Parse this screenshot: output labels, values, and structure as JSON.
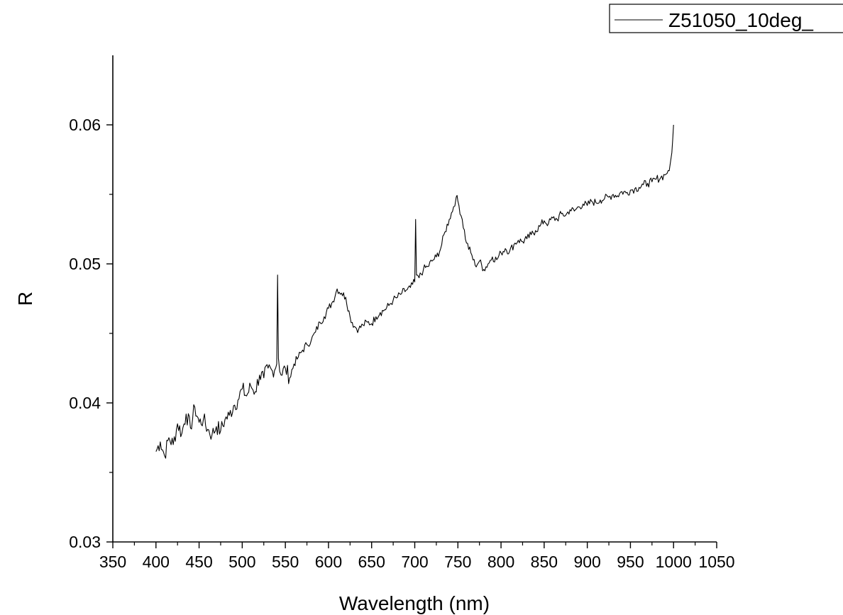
{
  "chart_data": {
    "type": "line",
    "title": "",
    "xlabel": "Wavelength (nm)",
    "ylabel": "R",
    "xlim": [
      350,
      1050
    ],
    "ylim": [
      0.03,
      0.065
    ],
    "x_ticks": [
      350,
      400,
      450,
      500,
      550,
      600,
      650,
      700,
      750,
      800,
      850,
      900,
      950,
      1000,
      1050
    ],
    "x_tick_labels": [
      "350",
      "400",
      "450",
      "500",
      "550",
      "600",
      "650",
      "700",
      "750",
      "800",
      "850",
      "900",
      "950",
      "1000",
      "1050"
    ],
    "y_ticks": [
      0.03,
      0.04,
      0.05,
      0.06
    ],
    "y_tick_labels": [
      "0.03",
      "0.04",
      "0.05",
      "0.06"
    ],
    "grid": false,
    "legend_position": "top-right",
    "series": [
      {
        "name": "Z51050_10deg_",
        "color": "#000000",
        "x": [
          400,
          405,
          410,
          415,
          420,
          425,
          430,
          435,
          440,
          445,
          450,
          455,
          460,
          465,
          470,
          475,
          480,
          485,
          490,
          495,
          500,
          505,
          510,
          515,
          520,
          525,
          530,
          535,
          540,
          541,
          542,
          545,
          550,
          555,
          560,
          565,
          570,
          575,
          580,
          585,
          590,
          595,
          600,
          605,
          610,
          615,
          620,
          625,
          630,
          635,
          640,
          645,
          650,
          655,
          660,
          665,
          670,
          675,
          680,
          685,
          690,
          695,
          700,
          701,
          702,
          705,
          710,
          715,
          720,
          725,
          730,
          735,
          740,
          745,
          748,
          750,
          755,
          760,
          765,
          770,
          775,
          780,
          785,
          790,
          795,
          800,
          805,
          810,
          815,
          820,
          825,
          830,
          835,
          840,
          845,
          850,
          855,
          860,
          865,
          870,
          875,
          880,
          885,
          890,
          895,
          900,
          905,
          910,
          915,
          920,
          925,
          930,
          935,
          940,
          945,
          950,
          955,
          960,
          965,
          970,
          975,
          980,
          985,
          990,
          995,
          998,
          1000
        ],
        "values": [
          0.0365,
          0.0372,
          0.0362,
          0.0375,
          0.037,
          0.0385,
          0.0378,
          0.0392,
          0.0382,
          0.0397,
          0.0386,
          0.0388,
          0.0381,
          0.0377,
          0.0383,
          0.038,
          0.0388,
          0.0391,
          0.0398,
          0.0402,
          0.041,
          0.0405,
          0.0412,
          0.0408,
          0.042,
          0.0418,
          0.0425,
          0.0423,
          0.0428,
          0.0492,
          0.0432,
          0.042,
          0.0425,
          0.0418,
          0.0428,
          0.0433,
          0.0438,
          0.0442,
          0.0445,
          0.0451,
          0.0458,
          0.0462,
          0.0468,
          0.0473,
          0.0482,
          0.0479,
          0.0476,
          0.0462,
          0.0455,
          0.0453,
          0.0456,
          0.0458,
          0.0457,
          0.0462,
          0.0465,
          0.0467,
          0.047,
          0.0474,
          0.0476,
          0.0479,
          0.0481,
          0.0483,
          0.0487,
          0.0532,
          0.0492,
          0.049,
          0.0496,
          0.0498,
          0.0502,
          0.0505,
          0.0511,
          0.0523,
          0.0532,
          0.0541,
          0.0548,
          0.0545,
          0.0532,
          0.0515,
          0.0508,
          0.0499,
          0.0502,
          0.0496,
          0.05,
          0.0505,
          0.0503,
          0.0508,
          0.0511,
          0.0509,
          0.0514,
          0.0517,
          0.0516,
          0.0518,
          0.0521,
          0.0524,
          0.0527,
          0.0531,
          0.0529,
          0.0533,
          0.0532,
          0.0536,
          0.0535,
          0.0539,
          0.0538,
          0.0541,
          0.0543,
          0.0542,
          0.0545,
          0.0544,
          0.0546,
          0.0547,
          0.0548,
          0.055,
          0.0549,
          0.0552,
          0.0551,
          0.0553,
          0.0554,
          0.0555,
          0.0557,
          0.0558,
          0.0559,
          0.0561,
          0.0562,
          0.0564,
          0.0567,
          0.058,
          0.06
        ]
      }
    ]
  }
}
